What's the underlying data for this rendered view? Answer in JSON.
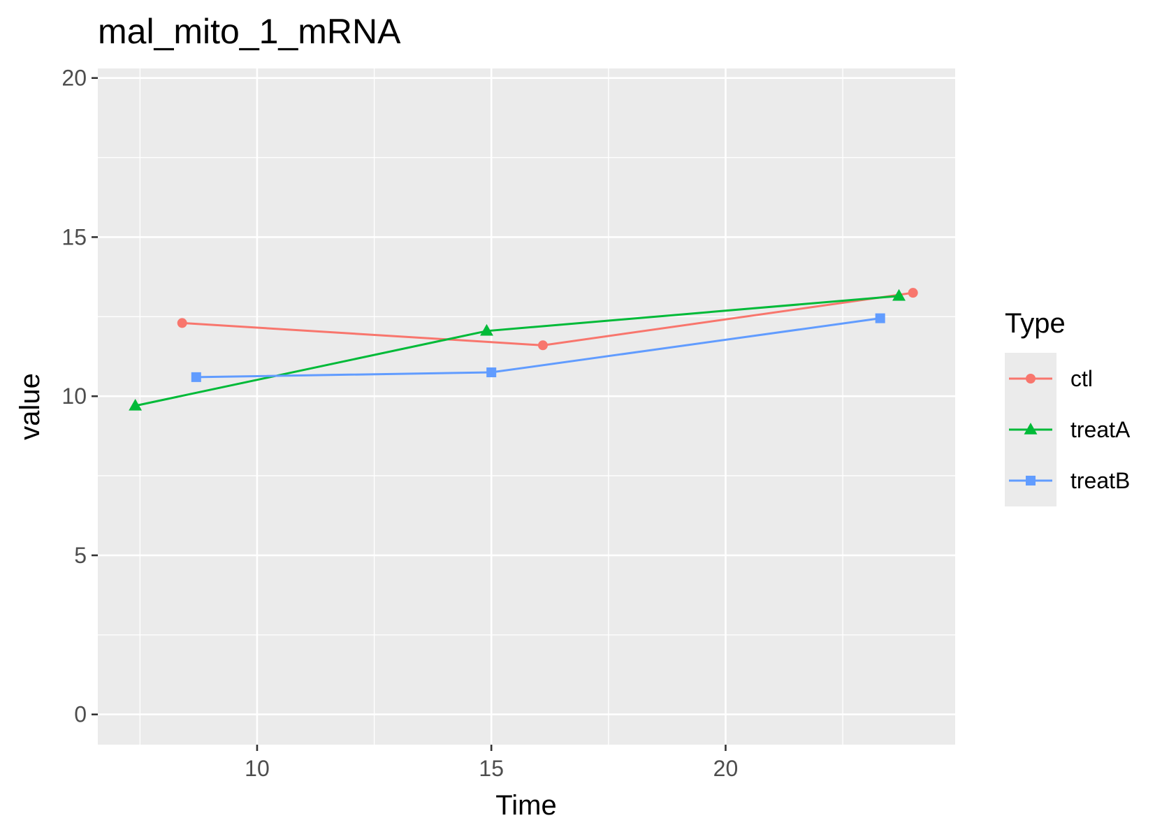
{
  "chart_data": {
    "type": "line",
    "title": "mal_mito_1_mRNA",
    "xlabel": "Time",
    "ylabel": "value",
    "xlim": [
      6.6,
      24.9
    ],
    "ylim": [
      -0.95,
      20.3
    ],
    "x_ticks": [
      10,
      15,
      20
    ],
    "x_tick_labels": [
      "10",
      "15",
      "20"
    ],
    "y_ticks": [
      0,
      5,
      10,
      15,
      20
    ],
    "y_tick_labels": [
      "0",
      "5",
      "10",
      "15",
      "20"
    ],
    "grid": true,
    "legend": {
      "title": "Type",
      "position": "right"
    },
    "series": [
      {
        "name": "ctl",
        "color": "#F8766D",
        "marker": "circle",
        "x": [
          8.4,
          16.1,
          24.0
        ],
        "y": [
          12.3,
          11.6,
          13.25
        ]
      },
      {
        "name": "treatA",
        "color": "#00BA38",
        "marker": "triangle",
        "x": [
          7.4,
          14.9,
          23.7
        ],
        "y": [
          9.7,
          12.05,
          13.15
        ]
      },
      {
        "name": "treatB",
        "color": "#619CFF",
        "marker": "square",
        "x": [
          8.7,
          15.0,
          23.3
        ],
        "y": [
          10.6,
          10.75,
          12.45
        ]
      }
    ]
  }
}
